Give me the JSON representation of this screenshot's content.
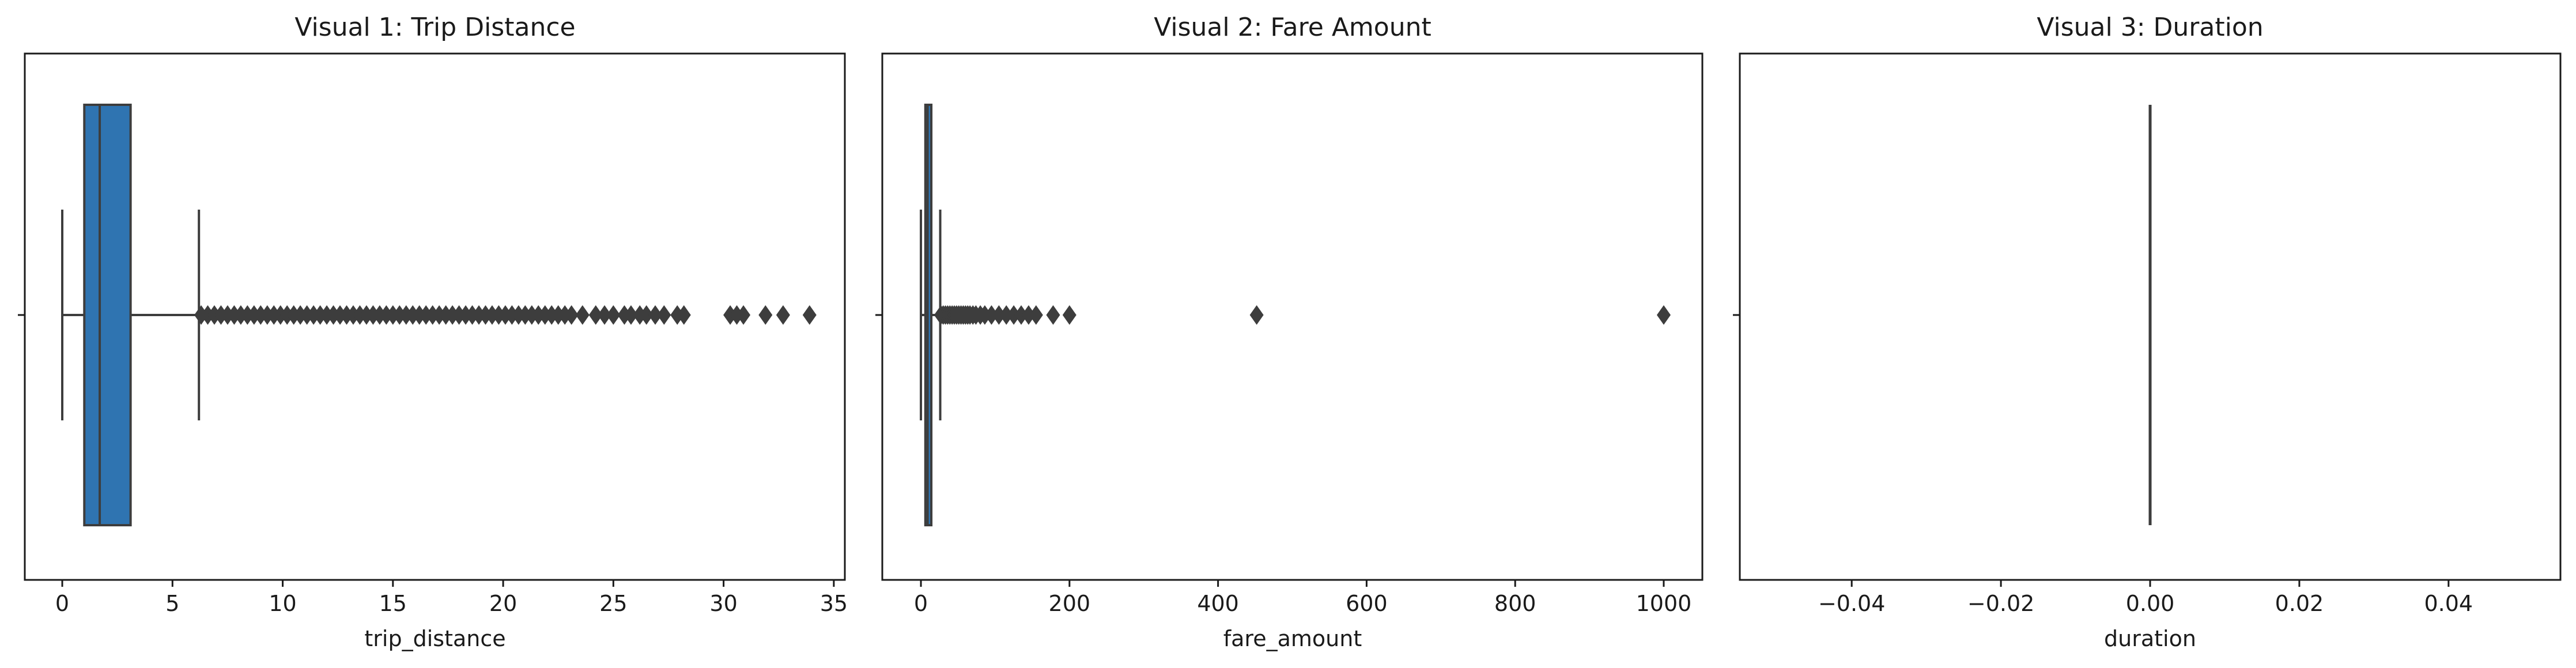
{
  "chart_data": [
    {
      "type": "box",
      "title": "Visual 1: Trip Distance",
      "xlabel": "trip_distance",
      "xlim": [
        -1.7,
        35.5
      ],
      "xticks": [
        0,
        5,
        10,
        15,
        20,
        25,
        30,
        35
      ],
      "box_color": "#2f74b1",
      "box": {
        "whisker_low": 0,
        "q1": 1.0,
        "median": 1.7,
        "q3": 3.1,
        "whisker_high": 6.2
      },
      "outliers": [
        6.3,
        6.6,
        6.9,
        7.2,
        7.5,
        7.8,
        8.1,
        8.4,
        8.7,
        9.0,
        9.3,
        9.6,
        9.9,
        10.2,
        10.5,
        10.8,
        11.1,
        11.4,
        11.7,
        12.0,
        12.3,
        12.6,
        12.9,
        13.2,
        13.5,
        13.8,
        14.1,
        14.4,
        14.7,
        15.0,
        15.3,
        15.6,
        15.9,
        16.2,
        16.5,
        16.8,
        17.1,
        17.4,
        17.7,
        18.0,
        18.3,
        18.6,
        18.9,
        19.2,
        19.5,
        19.8,
        20.1,
        20.4,
        20.7,
        21.0,
        21.3,
        21.6,
        21.9,
        22.2,
        22.5,
        22.8,
        23.1,
        23.6,
        24.2,
        24.6,
        25.0,
        25.5,
        25.8,
        26.2,
        26.5,
        26.9,
        27.3,
        27.9,
        28.2,
        30.3,
        30.6,
        30.9,
        31.9,
        32.7,
        33.9
      ]
    },
    {
      "type": "box",
      "title": "Visual 2: Fare Amount",
      "xlabel": "fare_amount",
      "xlim": [
        -52,
        1052
      ],
      "xticks": [
        0,
        200,
        400,
        600,
        800,
        1000
      ],
      "box_color": "#2f74b1",
      "box": {
        "whisker_low": 0,
        "q1": 6,
        "median": 9,
        "q3": 14,
        "whisker_high": 26
      },
      "outliers": [
        27,
        30,
        33,
        36,
        39,
        42,
        45,
        48,
        51,
        54,
        57,
        60,
        63,
        66,
        70,
        74,
        80,
        86,
        95,
        105,
        115,
        125,
        135,
        145,
        155,
        178,
        200,
        452,
        1000
      ]
    },
    {
      "type": "box",
      "title": "Visual 3: Duration",
      "xlabel": "duration",
      "xlim": [
        -0.055,
        0.055
      ],
      "xticks": [
        -0.04,
        -0.02,
        0.0,
        0.02,
        0.04
      ],
      "tick_labels": [
        "−0.04",
        "−0.02",
        "0.00",
        "0.02",
        "0.04"
      ],
      "box_color": "#2f74b1",
      "box": {
        "whisker_low": 0,
        "q1": 0,
        "median": 0,
        "q3": 0,
        "whisker_high": 0
      },
      "outliers": []
    }
  ]
}
